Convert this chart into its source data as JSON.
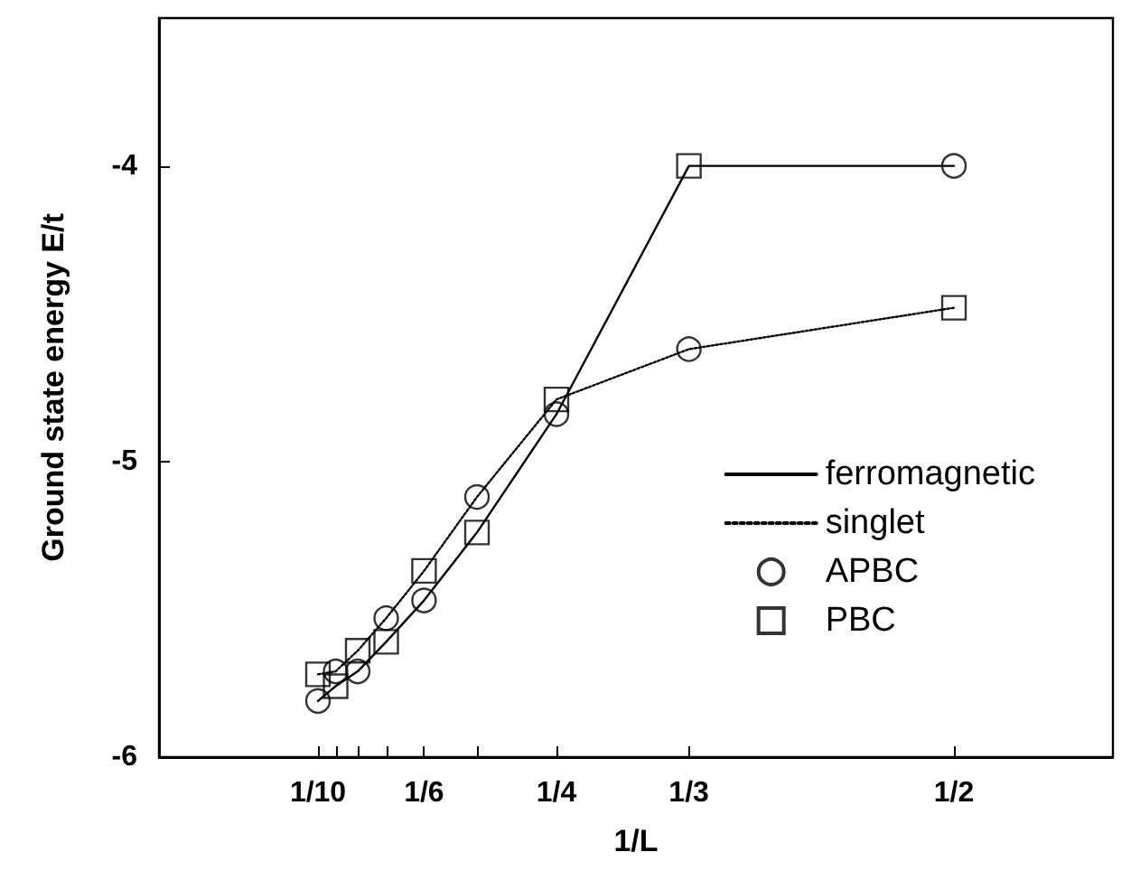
{
  "chart_data": {
    "type": "line",
    "xlabel": "1/L",
    "ylabel": "Ground state energy E/t",
    "xlim": [
      0,
      0.6
    ],
    "ylim": [
      -6,
      -3.5
    ],
    "xticks": [
      {
        "value": 0.1,
        "label": "1/10"
      },
      {
        "value": 0.1111,
        "label": null
      },
      {
        "value": 0.125,
        "label": null
      },
      {
        "value": 0.1429,
        "label": null
      },
      {
        "value": 0.1667,
        "label": "1/6"
      },
      {
        "value": 0.2,
        "label": null
      },
      {
        "value": 0.25,
        "label": "1/4"
      },
      {
        "value": 0.3333,
        "label": "1/3"
      },
      {
        "value": 0.5,
        "label": "1/2"
      }
    ],
    "yticks": [
      -6,
      -5,
      -4
    ],
    "grid": false,
    "legend": "right",
    "series": [
      {
        "name": "ferromagnetic",
        "color": "#000000",
        "line_style": "solid",
        "marker": "none",
        "x": [
          0.1,
          0.1111,
          0.125,
          0.1429,
          0.1667,
          0.2,
          0.25,
          0.3333,
          0.5
        ],
        "values": [
          -5.81,
          -5.76,
          -5.71,
          -5.61,
          -5.47,
          -5.24,
          -4.84,
          -4.0,
          -4.0
        ]
      },
      {
        "name": "singlet",
        "color": "#000000",
        "line_style": "dotted",
        "marker": "none",
        "x": [
          0.1,
          0.1111,
          0.125,
          0.1429,
          0.1667,
          0.2,
          0.25,
          0.3333,
          0.5
        ],
        "values": [
          -5.72,
          -5.71,
          -5.64,
          -5.53,
          -5.37,
          -5.12,
          -4.79,
          -4.62,
          -4.48
        ]
      },
      {
        "name": "APBC",
        "type": "scatter",
        "color": "#000000",
        "marker": "circle",
        "x": [
          0.1,
          0.125,
          0.1667,
          0.25,
          0.5,
          0.1111,
          0.1429,
          0.2,
          0.3333
        ],
        "values": [
          -5.81,
          -5.71,
          -5.47,
          -4.84,
          -4.0,
          -5.71,
          -5.53,
          -5.12,
          -4.62
        ]
      },
      {
        "name": "PBC",
        "type": "scatter",
        "color": "#000000",
        "marker": "square",
        "x": [
          0.1111,
          0.1429,
          0.2,
          0.3333,
          0.1,
          0.125,
          0.1667,
          0.25,
          0.5
        ],
        "values": [
          -5.76,
          -5.61,
          -5.24,
          -4.0,
          -5.72,
          -5.64,
          -5.37,
          -4.79,
          -4.48
        ]
      }
    ]
  }
}
